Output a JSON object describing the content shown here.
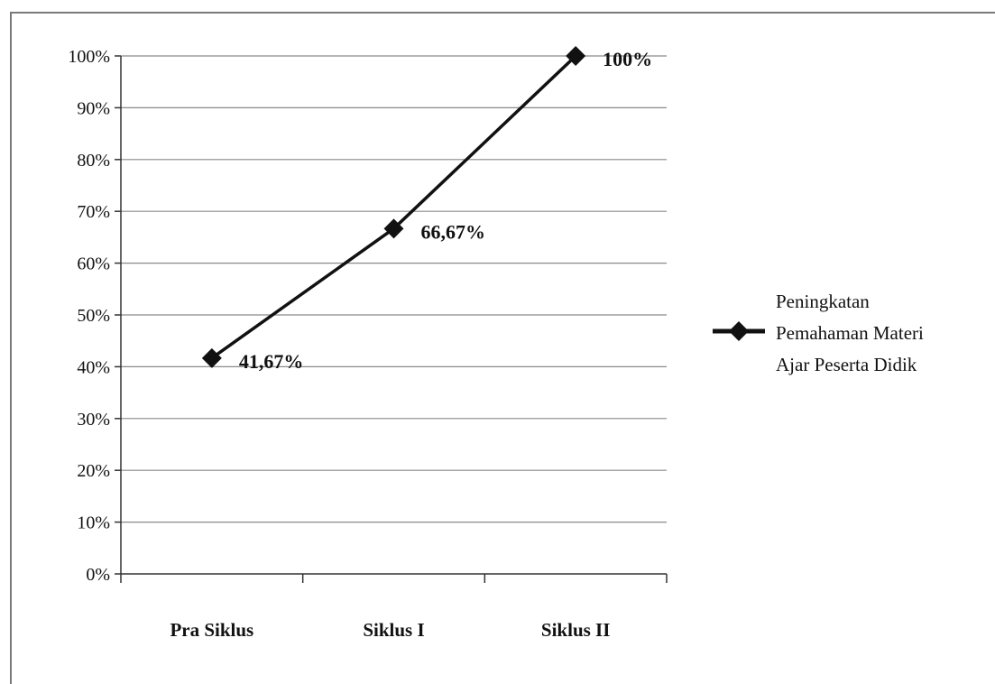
{
  "chart_data": {
    "type": "line",
    "categories": [
      "Pra Siklus",
      "Siklus I",
      "Siklus II"
    ],
    "series": [
      {
        "name": "Peningkatan Pemahaman Materi Ajar Peserta Didik",
        "values": [
          41.67,
          66.67,
          100
        ],
        "data_labels": [
          "41,67%",
          "66,67%",
          "100%"
        ],
        "color": "#111111",
        "marker": "diamond"
      }
    ],
    "y_ticks": [
      "0%",
      "10%",
      "20%",
      "30%",
      "40%",
      "50%",
      "60%",
      "70%",
      "80%",
      "90%",
      "100%"
    ],
    "ylim": [
      0,
      100
    ],
    "grid": true,
    "legend_position": "right",
    "legend_lines": [
      "Peningkatan",
      "Pemahaman Materi",
      "Ajar Peserta Didik"
    ],
    "title": "",
    "xlabel": "",
    "ylabel": ""
  }
}
